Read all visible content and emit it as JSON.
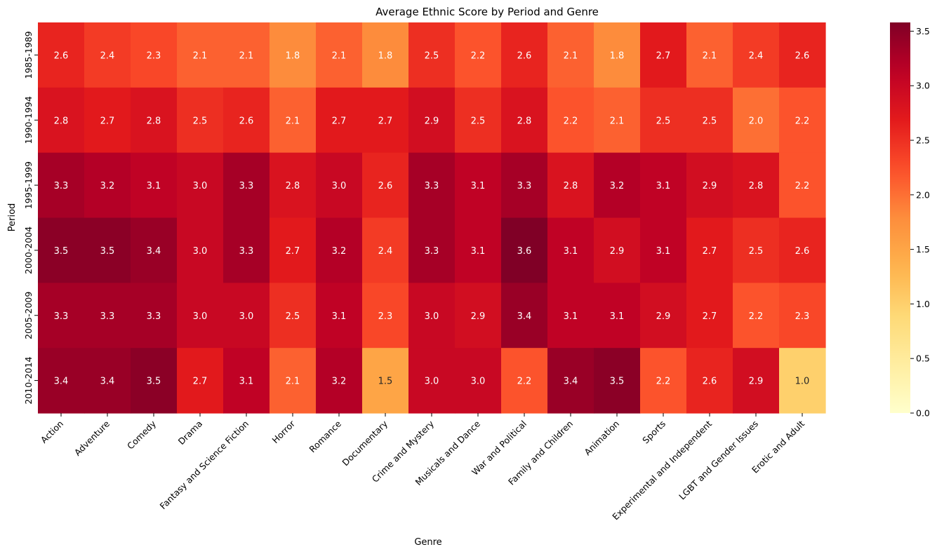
{
  "chart_data": {
    "type": "heatmap",
    "title": "Average Ethnic Score by Period and Genre",
    "xlabel": "Genre",
    "ylabel": "Period",
    "x_categories": [
      "Action",
      "Adventure",
      "Comedy",
      "Drama",
      "Fantasy and Science Fiction",
      "Horror",
      "Romance",
      "Documentary",
      "Crime and Mystery",
      "Musicals and Dance",
      "War and Political",
      "Family and Children",
      "Animation",
      "Sports",
      "Experimental and Independent",
      "LGBT and Gender Issues",
      "Erotic and Adult"
    ],
    "y_categories": [
      "1985-1989",
      "1990-1994",
      "1995-1999",
      "2000-2004",
      "2005-2009",
      "2010-2014"
    ],
    "values": [
      [
        2.6,
        2.4,
        2.3,
        2.1,
        2.1,
        1.8,
        2.1,
        1.8,
        2.5,
        2.2,
        2.6,
        2.1,
        1.8,
        2.7,
        2.1,
        2.4,
        2.6
      ],
      [
        2.8,
        2.7,
        2.8,
        2.5,
        2.6,
        2.1,
        2.7,
        2.7,
        2.9,
        2.5,
        2.8,
        2.2,
        2.1,
        2.5,
        2.5,
        2.0,
        2.2
      ],
      [
        3.3,
        3.2,
        3.1,
        3.0,
        3.3,
        2.8,
        3.0,
        2.6,
        3.3,
        3.1,
        3.3,
        2.8,
        3.2,
        3.1,
        2.9,
        2.8,
        2.2
      ],
      [
        3.5,
        3.5,
        3.4,
        3.0,
        3.3,
        2.7,
        3.2,
        2.4,
        3.3,
        3.1,
        3.6,
        3.1,
        2.9,
        3.1,
        2.7,
        2.5,
        2.6
      ],
      [
        3.3,
        3.3,
        3.3,
        3.0,
        3.0,
        2.5,
        3.1,
        2.3,
        3.0,
        2.9,
        3.4,
        3.1,
        3.1,
        2.9,
        2.7,
        2.2,
        2.3
      ],
      [
        3.4,
        3.4,
        3.5,
        2.7,
        3.1,
        2.1,
        3.2,
        1.5,
        3.0,
        3.0,
        2.2,
        3.4,
        3.5,
        2.2,
        2.6,
        2.9,
        1.0
      ]
    ],
    "colorbar": {
      "colormap": "YlOrRd",
      "vmin": 0,
      "vmax": 3.58,
      "ticks": [
        0.0,
        0.5,
        1.0,
        1.5,
        2.0,
        2.5,
        3.0,
        3.5
      ],
      "tick_labels": [
        "0.0",
        "0.5",
        "1.0",
        "1.5",
        "2.0",
        "2.5",
        "3.0",
        "3.5"
      ]
    },
    "annotations": true,
    "grid": false
  }
}
